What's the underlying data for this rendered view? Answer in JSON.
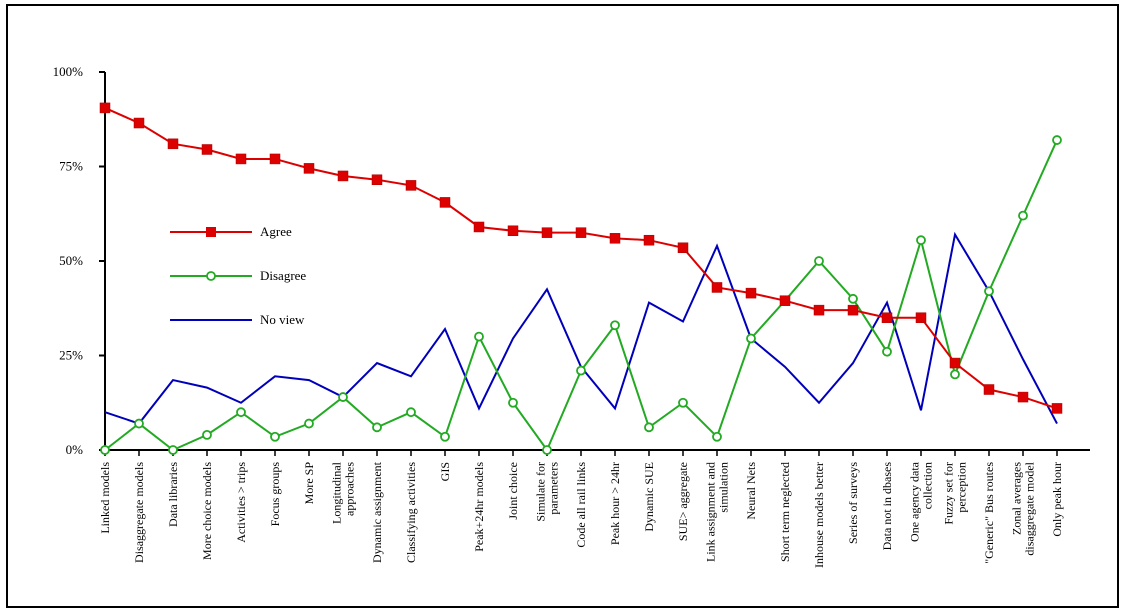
{
  "chart_data": {
    "type": "line",
    "title": "",
    "xlabel": "",
    "ylabel": "",
    "ylim": [
      0,
      100
    ],
    "y_ticks": [
      "0%",
      "25%",
      "50%",
      "75%",
      "100%"
    ],
    "y_tick_values": [
      0,
      25,
      50,
      75,
      100
    ],
    "grid": false,
    "legend_position": "left-middle",
    "categories": [
      [
        "Linked models"
      ],
      [
        "Disaggregate models"
      ],
      [
        "Data libraries"
      ],
      [
        "More choice models"
      ],
      [
        "Activities > trips"
      ],
      [
        "Focus groups"
      ],
      [
        "More SP"
      ],
      [
        "Longitudinal",
        "approaches"
      ],
      [
        "Dynamic assignment"
      ],
      [
        "Classifying activities"
      ],
      [
        "GIS"
      ],
      [
        "Peak+24hr models"
      ],
      [
        "Joint choice"
      ],
      [
        "Simulate for",
        "parameters"
      ],
      [
        "Code all rail links"
      ],
      [
        "Peak hour > 24hr"
      ],
      [
        "Dynamic SUE"
      ],
      [
        "SUE> aggregate"
      ],
      [
        "Link assignment and",
        "simulation"
      ],
      [
        "Neural Nets"
      ],
      [
        "Short term neglected"
      ],
      [
        "Inhouse models better"
      ],
      [
        "Series of surveys"
      ],
      [
        "Data not in dbases"
      ],
      [
        "One agency data",
        "collection"
      ],
      [
        "Fuzzy set for",
        "perception"
      ],
      [
        "\"Generic\" Bus routes"
      ],
      [
        "Zonal averages",
        "disaggregate model"
      ],
      [
        "Only peak hour"
      ]
    ],
    "series": [
      {
        "name": "Agree",
        "color": "#dd0000",
        "marker": "square",
        "values": [
          90.5,
          86.5,
          81,
          79.5,
          77,
          77,
          74.5,
          72.5,
          71.5,
          70,
          65.5,
          59,
          58,
          57.5,
          57.5,
          56,
          55.5,
          53.5,
          43,
          41.5,
          39.5,
          37,
          37,
          35,
          35,
          23,
          16,
          14,
          11
        ]
      },
      {
        "name": "Disagree",
        "color": "#22aa22",
        "marker": "circle",
        "values": [
          0,
          7,
          0,
          4,
          10,
          3.5,
          7,
          14,
          6,
          10,
          3.5,
          30,
          12.5,
          0,
          21,
          33,
          6,
          12.5,
          3.5,
          29.5,
          39.5,
          50,
          40,
          26,
          55.5,
          20,
          42,
          62,
          82
        ]
      },
      {
        "name": "No view",
        "color": "#0000bb",
        "marker": "none",
        "values": [
          10,
          7,
          18.5,
          16.5,
          12.5,
          19.5,
          18.5,
          14,
          23,
          19.5,
          32,
          11,
          29.5,
          42.5,
          22,
          11,
          39,
          34,
          54,
          29.5,
          22,
          12.5,
          23,
          39,
          10.5,
          57,
          42,
          24,
          7
        ]
      }
    ]
  }
}
